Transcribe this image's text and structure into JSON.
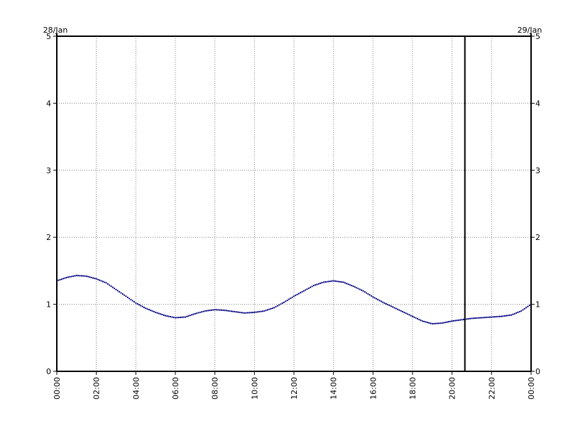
{
  "chart_data": {
    "type": "line",
    "title": "",
    "xlabel": "",
    "ylabel": "",
    "date_left": "28/Jan",
    "date_right": "29/Jan",
    "x_tick_labels": [
      "00:00",
      "02:00",
      "04:00",
      "06:00",
      "08:00",
      "10:00",
      "12:00",
      "14:00",
      "16:00",
      "18:00",
      "20:00",
      "22:00",
      "00:00"
    ],
    "x_tick_hours": [
      0,
      2,
      4,
      6,
      8,
      10,
      12,
      14,
      16,
      18,
      20,
      22,
      24
    ],
    "y_tick_labels": [
      "0",
      "1",
      "2",
      "3",
      "4",
      "5"
    ],
    "y_tick_values": [
      0,
      1,
      2,
      3,
      4,
      5
    ],
    "xlim": [
      0,
      24
    ],
    "ylim": [
      0,
      5
    ],
    "grid": true,
    "marker_time_hour": 20.65,
    "series": [
      {
        "color": "#000080",
        "style": "dotted",
        "x": [
          0,
          0.5,
          1,
          1.5,
          2,
          2.5,
          3,
          3.5,
          4,
          4.5,
          5,
          5.5,
          6,
          6.5,
          7,
          7.5,
          8,
          8.5,
          9,
          9.5,
          10,
          10.5,
          11,
          11.5,
          12,
          12.5,
          13,
          13.5,
          14,
          14.5,
          15,
          15.5,
          16,
          16.5,
          17,
          17.5,
          18,
          18.5,
          19,
          19.5,
          20,
          20.5,
          21,
          21.5,
          22,
          22.5,
          23,
          23.5,
          24
        ],
        "y": [
          1.35,
          1.4,
          1.43,
          1.42,
          1.38,
          1.32,
          1.22,
          1.12,
          1.02,
          0.94,
          0.88,
          0.83,
          0.8,
          0.81,
          0.86,
          0.9,
          0.92,
          0.91,
          0.89,
          0.87,
          0.88,
          0.9,
          0.95,
          1.03,
          1.12,
          1.2,
          1.28,
          1.33,
          1.35,
          1.33,
          1.27,
          1.2,
          1.11,
          1.03,
          0.96,
          0.89,
          0.82,
          0.75,
          0.71,
          0.72,
          0.75,
          0.77,
          0.79,
          0.8,
          0.81,
          0.82,
          0.84,
          0.9,
          1.0
        ]
      }
    ]
  },
  "colors": {
    "line": "#000080",
    "grid": "#7f7f7f",
    "axis": "#000000"
  }
}
